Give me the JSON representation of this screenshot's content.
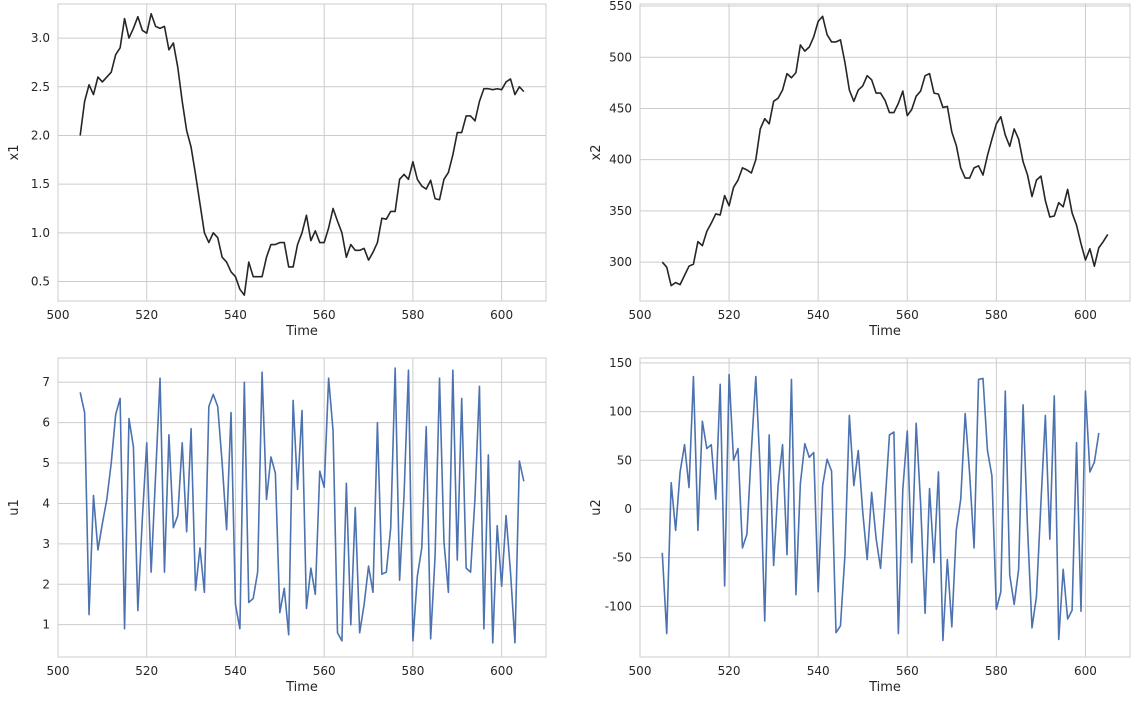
{
  "chart_data": [
    {
      "id": "x1",
      "type": "line",
      "xlabel": "Time",
      "ylabel": "x1",
      "xlim": [
        500,
        610
      ],
      "ylim": [
        0.3,
        3.35
      ],
      "xticks": [
        500,
        520,
        540,
        560,
        580,
        600
      ],
      "yticks": [
        0.5,
        1.0,
        1.5,
        2.0,
        2.5,
        3.0
      ],
      "ytick_format": 1,
      "grid": true,
      "color": "#262626",
      "x_start": 505,
      "series": [
        {
          "values": [
            2.0,
            2.35,
            2.52,
            2.42,
            2.6,
            2.55,
            2.6,
            2.65,
            2.83,
            2.9,
            3.2,
            3.0,
            3.1,
            3.22,
            3.08,
            3.05,
            3.25,
            3.12,
            3.1,
            3.12,
            2.88,
            2.95,
            2.7,
            2.35,
            2.05,
            1.88,
            1.6,
            1.3,
            1.0,
            0.9,
            1.0,
            0.95,
            0.75,
            0.7,
            0.6,
            0.55,
            0.42,
            0.36,
            0.7,
            0.55,
            0.55,
            0.55,
            0.75,
            0.88,
            0.88,
            0.9,
            0.9,
            0.65,
            0.65,
            0.88,
            1.0,
            1.18,
            0.92,
            1.02,
            0.9,
            0.9,
            1.05,
            1.25,
            1.12,
            1.0,
            0.75,
            0.88,
            0.82,
            0.82,
            0.84,
            0.72,
            0.8,
            0.9,
            1.15,
            1.14,
            1.22,
            1.22,
            1.55,
            1.6,
            1.55,
            1.73,
            1.55,
            1.48,
            1.45,
            1.54,
            1.35,
            1.34,
            1.55,
            1.62,
            1.8,
            2.03,
            2.03,
            2.2,
            2.2,
            2.15,
            2.35,
            2.48,
            2.48,
            2.47,
            2.48,
            2.47,
            2.55,
            2.58,
            2.42,
            2.5,
            2.45
          ]
        }
      ]
    },
    {
      "id": "x2",
      "type": "line",
      "xlabel": "Time",
      "ylabel": "x2",
      "xlim": [
        500,
        610
      ],
      "ylim": [
        262,
        552
      ],
      "xticks": [
        500,
        520,
        540,
        560,
        580,
        600
      ],
      "yticks": [
        300,
        350,
        400,
        450,
        500,
        550
      ],
      "ytick_format": 0,
      "grid": true,
      "color": "#262626",
      "x_start": 505,
      "series": [
        {
          "values": [
            300,
            295,
            277,
            280,
            278,
            287,
            296,
            298,
            320,
            316,
            330,
            338,
            347,
            346,
            365,
            355,
            373,
            380,
            392,
            390,
            387,
            400,
            430,
            440,
            435,
            457,
            460,
            468,
            484,
            480,
            485,
            512,
            506,
            510,
            520,
            535,
            540,
            522,
            515,
            515,
            517,
            495,
            468,
            457,
            468,
            472,
            482,
            478,
            465,
            465,
            458,
            446,
            446,
            455,
            467,
            443,
            449,
            462,
            467,
            482,
            484,
            465,
            464,
            451,
            452,
            427,
            414,
            392,
            382,
            382,
            392,
            394,
            385,
            404,
            420,
            435,
            442,
            424,
            413,
            430,
            420,
            398,
            385,
            364,
            380,
            384,
            360,
            344,
            345,
            358,
            354,
            371,
            348,
            336,
            318,
            302,
            313,
            296,
            314,
            320,
            327
          ]
        }
      ]
    },
    {
      "id": "u1",
      "type": "line",
      "xlabel": "Time",
      "ylabel": "u1",
      "xlim": [
        500,
        610
      ],
      "ylim": [
        0.2,
        7.6
      ],
      "xticks": [
        500,
        520,
        540,
        560,
        580,
        600
      ],
      "yticks": [
        1,
        2,
        3,
        4,
        5,
        6,
        7
      ],
      "ytick_format": 0,
      "grid": true,
      "color": "#4c72b0",
      "x_start": 505,
      "series": [
        {
          "values": [
            6.75,
            6.25,
            1.25,
            4.2,
            2.85,
            3.5,
            4.1,
            5.0,
            6.2,
            6.6,
            0.9,
            6.1,
            5.4,
            1.35,
            3.6,
            5.5,
            2.3,
            4.7,
            7.1,
            2.3,
            5.7,
            3.4,
            3.7,
            5.5,
            3.3,
            5.85,
            1.85,
            2.9,
            1.8,
            6.4,
            6.7,
            6.4,
            5.0,
            3.35,
            6.25,
            1.5,
            0.9,
            7.0,
            1.55,
            1.65,
            2.3,
            7.25,
            4.1,
            5.15,
            4.75,
            1.3,
            1.9,
            0.75,
            6.55,
            4.35,
            6.3,
            1.4,
            2.4,
            1.75,
            4.8,
            4.4,
            7.1,
            5.8,
            0.8,
            0.6,
            4.5,
            1.0,
            3.9,
            0.8,
            1.5,
            2.45,
            1.8,
            6.0,
            2.25,
            2.3,
            3.4,
            7.35,
            2.1,
            4.2,
            7.3,
            0.6,
            2.2,
            2.9,
            5.9,
            0.65,
            2.7,
            7.1,
            3.05,
            1.8,
            7.3,
            2.6,
            6.6,
            2.4,
            2.3,
            4.15,
            6.9,
            0.9,
            5.2,
            0.55,
            3.45,
            1.95,
            3.7,
            2.3,
            0.55,
            5.05,
            4.55
          ]
        }
      ]
    },
    {
      "id": "u2",
      "type": "line",
      "xlabel": "Time",
      "ylabel": "u2",
      "xlim": [
        500,
        610
      ],
      "ylim": [
        -152,
        155
      ],
      "xticks": [
        500,
        520,
        540,
        560,
        580,
        600
      ],
      "yticks": [
        -100,
        -50,
        0,
        50,
        100,
        150
      ],
      "ytick_format": 0,
      "grid": true,
      "color": "#4c72b0",
      "x_start": 505,
      "series": [
        {
          "values": [
            -45,
            -128,
            27,
            -22,
            38,
            66,
            22,
            136,
            -22,
            90,
            62,
            66,
            10,
            128,
            -79,
            138,
            50,
            62,
            -40,
            -26,
            60,
            136,
            38,
            -115,
            76,
            -58,
            24,
            66,
            -47,
            133,
            -88,
            26,
            67,
            53,
            58,
            -85,
            24,
            51,
            39,
            -127,
            -120,
            -48,
            96,
            24,
            60,
            -3,
            -52,
            17,
            -30,
            -61,
            5,
            76,
            79,
            -128,
            20,
            80,
            -55,
            88,
            5,
            -107,
            21,
            -55,
            38,
            -135,
            -52,
            -121,
            -22,
            10,
            98,
            36,
            -40,
            133,
            134,
            60,
            34,
            -103,
            -85,
            121,
            -68,
            -98,
            -62,
            107,
            -20,
            -122,
            -90,
            6,
            96,
            -31,
            116,
            -134,
            -62,
            -113,
            -104,
            68,
            -105,
            121,
            38,
            48,
            78
          ]
        }
      ]
    }
  ]
}
